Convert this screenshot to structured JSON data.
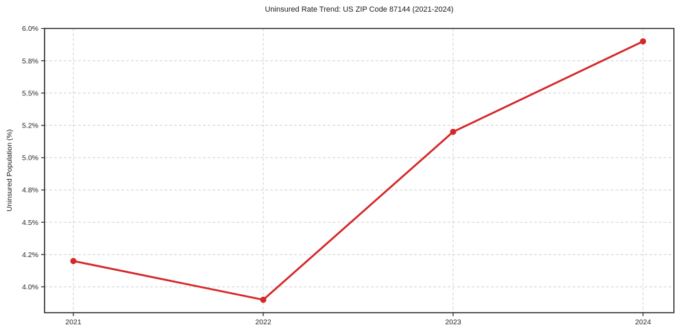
{
  "chart_data": {
    "type": "line",
    "title": "Uninsured Rate Trend: US ZIP Code 87144 (2021-2024)",
    "xlabel": "",
    "ylabel": "Uninsured Population (%)",
    "categories": [
      "2021",
      "2022",
      "2023",
      "2024"
    ],
    "values": [
      4.2,
      3.9,
      5.2,
      5.9
    ],
    "ylim": [
      3.8,
      6.0
    ],
    "y_ticks": [
      {
        "value": 4.0,
        "label": "4.0%"
      },
      {
        "value": 4.25,
        "label": "4.2%"
      },
      {
        "value": 4.5,
        "label": "4.5%"
      },
      {
        "value": 4.75,
        "label": "4.8%"
      },
      {
        "value": 5.0,
        "label": "5.0%"
      },
      {
        "value": 5.25,
        "label": "5.2%"
      },
      {
        "value": 5.5,
        "label": "5.5%"
      },
      {
        "value": 5.75,
        "label": "5.8%"
      },
      {
        "value": 6.0,
        "label": "6.0%"
      }
    ],
    "grid": true,
    "grid_style": "dashed",
    "legend": "none",
    "line_color": "#d62728",
    "grid_color": "#cfcfcf",
    "axis_color": "#1f1f1f",
    "text_color": "#262626",
    "background_color": "#ffffff"
  }
}
